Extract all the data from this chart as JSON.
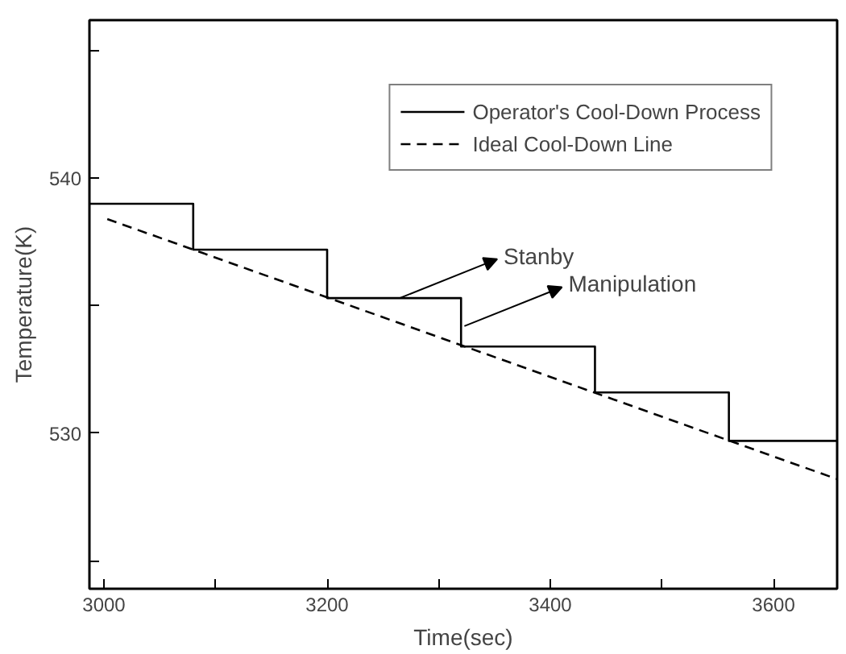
{
  "chart_data": {
    "type": "line",
    "xlabel": "Time(sec)",
    "ylabel": "Temperature(K)",
    "xlim": [
      2987,
      3657
    ],
    "ylim": [
      523.9,
      546.2
    ],
    "xticks": [
      3000,
      {
        "value": 3100,
        "label": null
      },
      3200,
      {
        "value": 3300,
        "label": null
      },
      3400,
      {
        "value": 3500,
        "label": null
      },
      3600
    ],
    "yticks": [
      {
        "value": 525,
        "label": null
      },
      530,
      {
        "value": 535,
        "label": null
      },
      540,
      {
        "value": 545,
        "label": null
      }
    ],
    "series": [
      {
        "name": "Operator's Cool-Down Process",
        "type": "step",
        "color": "#000000",
        "line_style": "solid",
        "x": [
          2987,
          3080,
          3200,
          3320,
          3440,
          3560,
          3657
        ],
        "values": [
          539.0,
          537.2,
          535.3,
          533.4,
          531.6,
          529.7,
          529.7
        ]
      },
      {
        "name": "Ideal Cool-Down Line",
        "color": "#000000",
        "line_style": "dashed",
        "x": [
          3003,
          3657
        ],
        "values": [
          538.4,
          528.2
        ]
      }
    ],
    "annotations": [
      {
        "text": "Stanby",
        "x": 3265,
        "y": 535.3
      },
      {
        "text": "Manipulation",
        "x": 3323,
        "y": 534.2
      }
    ],
    "legend": "top right",
    "grid": false
  }
}
